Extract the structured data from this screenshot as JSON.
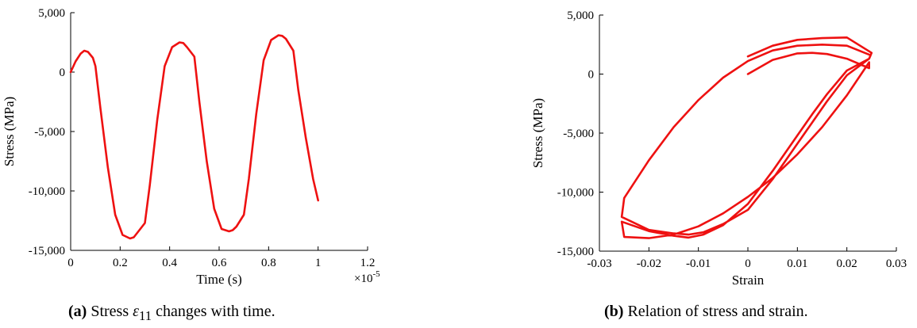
{
  "chart_data": [
    {
      "type": "line",
      "xlabel": "Time (s)",
      "ylabel": "Stress (MPa)",
      "x_multiplier": "×10",
      "x_multiplier_exp": "-5",
      "xlim": [
        0,
        1.2
      ],
      "ylim": [
        -15000,
        5000
      ],
      "xticks": [
        "0",
        "0.2",
        "0.4",
        "0.6",
        "0.8",
        "1",
        "1.2"
      ],
      "yticks": [
        "5,000",
        "0",
        "-5,000",
        "-10,000",
        "-15,000"
      ],
      "series": [
        {
          "color": "#ee1111",
          "x": [
            0,
            0.02,
            0.04,
            0.055,
            0.07,
            0.09,
            0.1,
            0.12,
            0.15,
            0.18,
            0.21,
            0.24,
            0.255,
            0.27,
            0.3,
            0.32,
            0.35,
            0.38,
            0.41,
            0.44,
            0.455,
            0.47,
            0.5,
            0.52,
            0.55,
            0.58,
            0.61,
            0.64,
            0.655,
            0.67,
            0.7,
            0.72,
            0.75,
            0.78,
            0.81,
            0.84,
            0.855,
            0.87,
            0.9,
            0.92,
            0.95,
            0.98,
            1.0
          ],
          "y": [
            0,
            900,
            1550,
            1800,
            1700,
            1200,
            500,
            -3000,
            -8000,
            -12000,
            -13700,
            -14000,
            -13900,
            -13500,
            -12700,
            -9500,
            -4000,
            500,
            2100,
            2500,
            2450,
            2100,
            1300,
            -2500,
            -7500,
            -11500,
            -13200,
            -13400,
            -13300,
            -13000,
            -12000,
            -9000,
            -3500,
            1000,
            2700,
            3100,
            3050,
            2800,
            1800,
            -1500,
            -5500,
            -9000,
            -10800
          ]
        }
      ]
    },
    {
      "type": "line",
      "xlabel": "Strain",
      "ylabel": "Stress (MPa)",
      "xlim": [
        -0.03,
        0.03
      ],
      "ylim": [
        -15000,
        5000
      ],
      "xticks": [
        "-0.03",
        "-0.02",
        "-0.01",
        "0",
        "0.01",
        "0.02",
        "0.03"
      ],
      "yticks": [
        "5,000",
        "0",
        "-5,000",
        "-10,000",
        "-15,000"
      ],
      "series": [
        {
          "color": "#ee1111",
          "x": [
            0,
            0.005,
            0.01,
            0.013,
            0.016,
            0.02,
            0.0245,
            0.0245,
            0.02,
            0.015,
            0.01,
            0.005,
            0,
            -0.005,
            -0.01,
            -0.015,
            -0.02,
            -0.025,
            -0.0255,
            -0.02,
            -0.015,
            -0.012,
            -0.009,
            -0.005,
            0,
            0.005,
            0.01,
            0.013,
            0.016,
            0.02,
            0.0245,
            0.0248,
            0.02,
            0.015,
            0.01,
            0.005,
            0,
            -0.005,
            -0.01,
            -0.015,
            -0.02,
            -0.025,
            -0.0255,
            -0.02,
            -0.015,
            -0.012,
            -0.009,
            -0.005,
            0,
            0.005,
            0.01,
            0.013,
            0.016,
            0.02,
            0.0245,
            0.025,
            0.02,
            0.015,
            0.01,
            0.005,
            0
          ],
          "y": [
            0,
            1200,
            1750,
            1800,
            1700,
            1300,
            500,
            1000,
            -1800,
            -4500,
            -6800,
            -8800,
            -10400,
            -11800,
            -12900,
            -13600,
            -13900,
            -13800,
            -12500,
            -13300,
            -13700,
            -13850,
            -13600,
            -12800,
            -11000,
            -8200,
            -5200,
            -3400,
            -1700,
            300,
            1300,
            1600,
            2400,
            2500,
            2400,
            2000,
            1100,
            -300,
            -2200,
            -4500,
            -7300,
            -10500,
            -12100,
            -13200,
            -13500,
            -13600,
            -13400,
            -12700,
            -11500,
            -8900,
            -5900,
            -4100,
            -2300,
            -100,
            1300,
            1800,
            3100,
            3050,
            2900,
            2400,
            1500
          ]
        }
      ]
    }
  ],
  "captions": [
    {
      "label": "(a)",
      "pre": " Stress ",
      "sym": "ε",
      "sub": "11",
      "post": " changes with time."
    },
    {
      "label": "(b)",
      "text": " Relation of stress and strain."
    }
  ]
}
